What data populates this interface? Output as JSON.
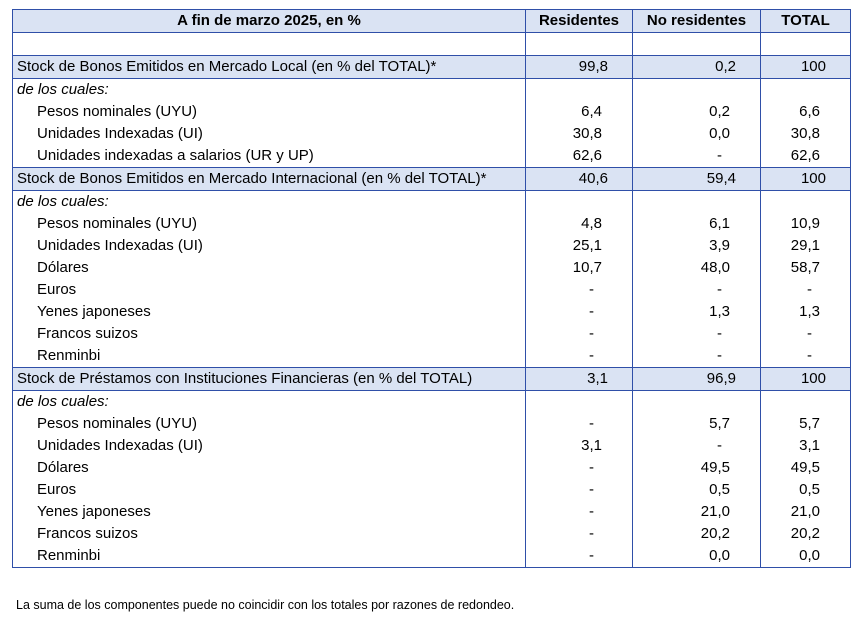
{
  "header": {
    "title": "A fin de marzo 2025, en %",
    "columns": [
      "Residentes",
      "No residentes",
      "TOTAL"
    ]
  },
  "rows": [
    {
      "type": "blank",
      "label": "",
      "values": [
        "",
        "",
        ""
      ]
    },
    {
      "type": "sec",
      "label": "Stock de Bonos Emitidos en Mercado Local (en % del TOTAL)*",
      "values": [
        "99,8",
        "0,2",
        "100"
      ]
    },
    {
      "type": "sub",
      "label": "de los cuales:",
      "values": [
        "",
        "",
        ""
      ]
    },
    {
      "type": "item",
      "label": "Pesos nominales (UYU)",
      "values": [
        "6,4",
        "0,2",
        "6,6"
      ]
    },
    {
      "type": "item",
      "label": "Unidades Indexadas (UI)",
      "values": [
        "30,8",
        "0,0",
        "30,8"
      ]
    },
    {
      "type": "item",
      "label": "Unidades indexadas a salarios (UR y UP)",
      "values": [
        "62,6",
        "-",
        "62,6"
      ]
    },
    {
      "type": "sec",
      "label": "Stock de Bonos Emitidos en Mercado Internacional (en % del TOTAL)*",
      "values": [
        "40,6",
        "59,4",
        "100"
      ]
    },
    {
      "type": "sub",
      "label": "de los cuales:",
      "values": [
        "",
        "",
        ""
      ]
    },
    {
      "type": "item",
      "label": "Pesos nominales (UYU)",
      "values": [
        "4,8",
        "6,1",
        "10,9"
      ]
    },
    {
      "type": "item",
      "label": "Unidades Indexadas (UI)",
      "values": [
        "25,1",
        "3,9",
        "29,1"
      ]
    },
    {
      "type": "item",
      "label": "Dólares",
      "values": [
        "10,7",
        "48,0",
        "58,7"
      ]
    },
    {
      "type": "item",
      "label": "Euros",
      "values": [
        "-",
        "-",
        "-"
      ]
    },
    {
      "type": "item",
      "label": "Yenes japoneses",
      "values": [
        "-",
        "1,3",
        "1,3"
      ]
    },
    {
      "type": "item",
      "label": "Francos suizos",
      "values": [
        "-",
        "-",
        "-"
      ]
    },
    {
      "type": "item",
      "label": "Renminbi",
      "values": [
        "-",
        "-",
        "-"
      ]
    },
    {
      "type": "sec",
      "label": "Stock de Préstamos con Instituciones Financieras (en % del TOTAL)",
      "values": [
        "3,1",
        "96,9",
        "100"
      ]
    },
    {
      "type": "sub",
      "label": "de los cuales:",
      "values": [
        "",
        "",
        ""
      ]
    },
    {
      "type": "item",
      "label": "Pesos nominales (UYU)",
      "values": [
        "-",
        "5,7",
        "5,7"
      ]
    },
    {
      "type": "item",
      "label": "Unidades Indexadas (UI)",
      "values": [
        "3,1",
        "-",
        "3,1"
      ]
    },
    {
      "type": "item",
      "label": "Dólares",
      "values": [
        "-",
        "49,5",
        "49,5"
      ]
    },
    {
      "type": "item",
      "label": "Euros",
      "values": [
        "-",
        "0,5",
        "0,5"
      ]
    },
    {
      "type": "item",
      "label": "Yenes japoneses",
      "values": [
        "-",
        "21,0",
        "21,0"
      ]
    },
    {
      "type": "item",
      "label": "Francos suizos",
      "values": [
        "-",
        "20,2",
        "20,2"
      ]
    },
    {
      "type": "item",
      "label": "Renminbi",
      "values": [
        "-",
        "0,0",
        "0,0"
      ]
    }
  ],
  "footnote": "La suma de los componentes puede no coincidir con los totales por razones de redondeo."
}
